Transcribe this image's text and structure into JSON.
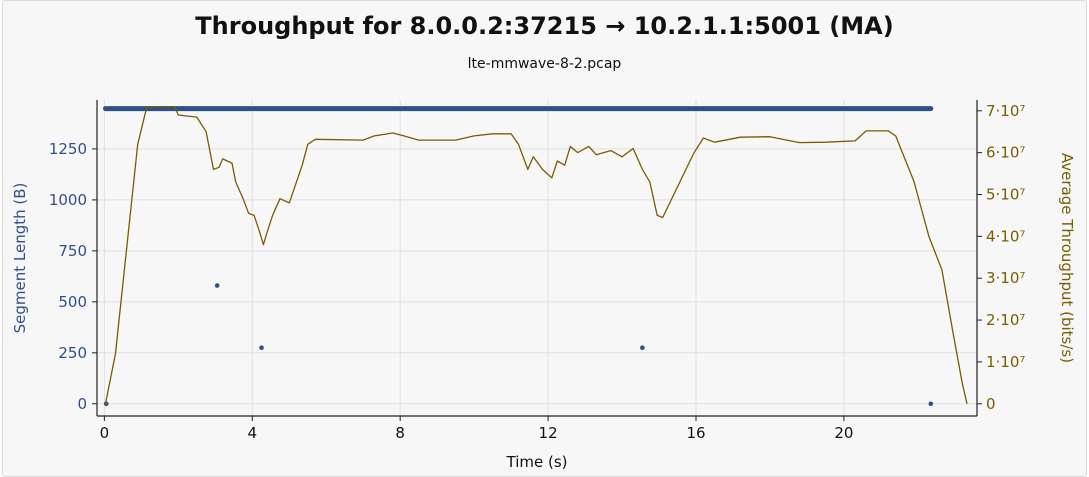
{
  "chart_data": {
    "type": "line",
    "title": "Throughput for 8.0.0.2:37215 → 10.2.1.1:5001 (MA)",
    "subtitle": "lte-mmwave-8-2.pcap",
    "xlabel": "Time (s)",
    "ylabel_left": "Segment Length (B)",
    "ylabel_right": "Average Throughput (bits/s)",
    "xlim": [
      -0.2,
      23.6
    ],
    "ylim_left": [
      -60,
      1490
    ],
    "ylim_right": [
      -2922000,
      72578000
    ],
    "x_ticks": [
      {
        "v": 0,
        "label": "0"
      },
      {
        "v": 4,
        "label": "4"
      },
      {
        "v": 8,
        "label": "8"
      },
      {
        "v": 12,
        "label": "12"
      },
      {
        "v": 16,
        "label": "16"
      },
      {
        "v": 20,
        "label": "20"
      }
    ],
    "y_left_ticks": [
      {
        "v": 0,
        "label": "0"
      },
      {
        "v": 250,
        "label": "250"
      },
      {
        "v": 500,
        "label": "500"
      },
      {
        "v": 750,
        "label": "750"
      },
      {
        "v": 1000,
        "label": "1000"
      },
      {
        "v": 1250,
        "label": "1250"
      }
    ],
    "y_right_ticks": [
      {
        "v": 0,
        "label": "0"
      },
      {
        "v": 10000000,
        "label": "1·10⁷"
      },
      {
        "v": 20000000,
        "label": "2·10⁷"
      },
      {
        "v": 30000000,
        "label": "3·10⁷"
      },
      {
        "v": 40000000,
        "label": "4·10⁷"
      },
      {
        "v": 50000000,
        "label": "5·10⁷"
      },
      {
        "v": 60000000,
        "label": "6·10⁷"
      },
      {
        "v": 70000000,
        "label": "7·10⁷"
      }
    ],
    "grid": true,
    "colors": {
      "segments": "#2f4f8a",
      "throughput": "#7a5c00",
      "grid": "#e0e0e0",
      "axis": "#222222"
    },
    "series": [
      {
        "key": "segments",
        "type": "scatter",
        "band": {
          "x_start": 0.03,
          "x_end": 22.35,
          "y": 1448
        },
        "points": [
          {
            "x": 0.05,
            "y": 0
          },
          {
            "x": 3.05,
            "y": 580
          },
          {
            "x": 4.25,
            "y": 275
          },
          {
            "x": 14.55,
            "y": 275
          },
          {
            "x": 22.35,
            "y": 0
          }
        ]
      },
      {
        "key": "throughput",
        "type": "line",
        "points": [
          [
            0.03,
            0
          ],
          [
            0.3,
            12000000
          ],
          [
            0.6,
            37000000
          ],
          [
            0.9,
            62000000
          ],
          [
            1.15,
            71000000
          ],
          [
            1.9,
            71000000
          ],
          [
            2.0,
            69000000
          ],
          [
            2.5,
            68500000
          ],
          [
            2.75,
            65000000
          ],
          [
            2.95,
            56000000
          ],
          [
            3.1,
            56500000
          ],
          [
            3.2,
            58500000
          ],
          [
            3.45,
            57500000
          ],
          [
            3.55,
            53000000
          ],
          [
            3.75,
            49000000
          ],
          [
            3.9,
            45500000
          ],
          [
            4.05,
            45000000
          ],
          [
            4.2,
            41000000
          ],
          [
            4.3,
            38000000
          ],
          [
            4.4,
            41000000
          ],
          [
            4.55,
            45000000
          ],
          [
            4.75,
            49000000
          ],
          [
            5.0,
            48000000
          ],
          [
            5.35,
            57000000
          ],
          [
            5.5,
            62000000
          ],
          [
            5.7,
            63200000
          ],
          [
            7.0,
            63000000
          ],
          [
            7.3,
            64000000
          ],
          [
            7.8,
            64700000
          ],
          [
            8.1,
            64000000
          ],
          [
            8.5,
            63000000
          ],
          [
            9.5,
            63000000
          ],
          [
            10.0,
            64000000
          ],
          [
            10.5,
            64500000
          ],
          [
            11.0,
            64500000
          ],
          [
            11.2,
            62000000
          ],
          [
            11.45,
            56000000
          ],
          [
            11.6,
            59000000
          ],
          [
            11.85,
            56000000
          ],
          [
            12.1,
            54000000
          ],
          [
            12.25,
            58000000
          ],
          [
            12.45,
            57000000
          ],
          [
            12.6,
            61500000
          ],
          [
            12.8,
            60000000
          ],
          [
            13.1,
            61500000
          ],
          [
            13.3,
            59500000
          ],
          [
            13.7,
            60500000
          ],
          [
            14.0,
            59000000
          ],
          [
            14.3,
            61000000
          ],
          [
            14.55,
            56000000
          ],
          [
            14.75,
            53000000
          ],
          [
            14.95,
            45000000
          ],
          [
            15.1,
            44500000
          ],
          [
            15.4,
            50000000
          ],
          [
            15.7,
            55500000
          ],
          [
            15.95,
            60000000
          ],
          [
            16.2,
            63500000
          ],
          [
            16.5,
            62500000
          ],
          [
            17.2,
            63700000
          ],
          [
            18.0,
            63800000
          ],
          [
            18.8,
            62400000
          ],
          [
            19.5,
            62500000
          ],
          [
            20.3,
            62800000
          ],
          [
            20.4,
            63600000
          ],
          [
            20.6,
            65200000
          ],
          [
            21.2,
            65200000
          ],
          [
            21.4,
            64000000
          ],
          [
            21.9,
            53000000
          ],
          [
            22.3,
            40000000
          ],
          [
            22.65,
            32000000
          ],
          [
            22.95,
            17000000
          ],
          [
            23.2,
            5000000
          ],
          [
            23.33,
            0
          ]
        ]
      }
    ]
  }
}
